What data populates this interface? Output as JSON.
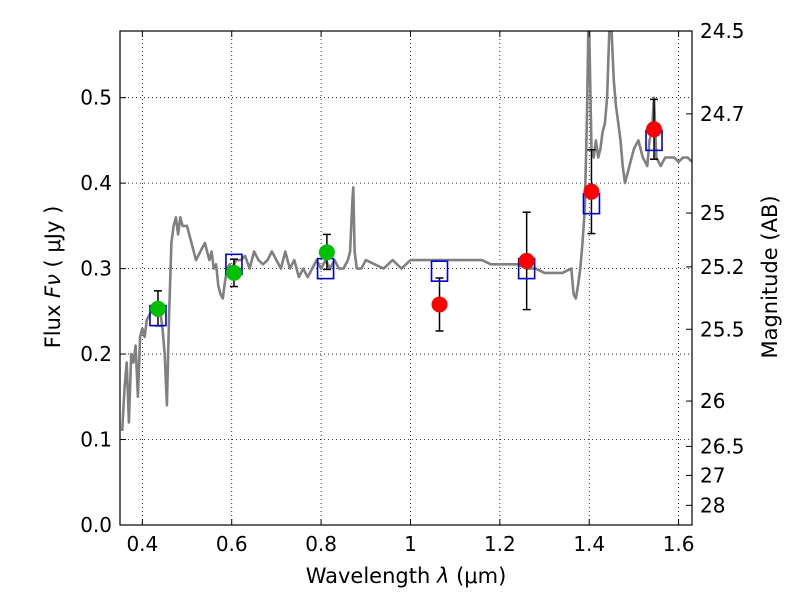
{
  "chart_data": {
    "type": "scatter",
    "xlabel_prefix": "Wavelength",
    "xlabel_symbol": "λ",
    "xlabel_unit": "(μm)",
    "ylabel_prefix": "Flux",
    "ylabel_symbol": "Fν",
    "ylabel_unit": "( μJy )",
    "y2label": "Magnitude (AB)",
    "xlim": [
      0.35,
      1.63
    ],
    "ylim": [
      0.0,
      0.578
    ],
    "grid": true,
    "x_ticks": [
      0.4,
      0.6,
      0.8,
      1.0,
      1.2,
      1.4,
      1.6
    ],
    "x_tick_labels": [
      "0.4",
      "0.6",
      "0.8",
      "1",
      "1.2",
      "1.4",
      "1.6"
    ],
    "y_ticks": [
      0.0,
      0.1,
      0.2,
      0.3,
      0.4,
      0.5
    ],
    "y_tick_labels": [
      "0.0",
      "0.1",
      "0.2",
      "0.3",
      "0.4",
      "0.5"
    ],
    "mag_ticks": [
      {
        "label": "24.5",
        "flux": 0.578
      },
      {
        "label": "24.7",
        "flux": 0.481
      },
      {
        "label": "25",
        "flux": 0.365
      },
      {
        "label": "25.2",
        "flux": 0.302
      },
      {
        "label": "25.5",
        "flux": 0.229
      },
      {
        "label": "26",
        "flux": 0.145
      },
      {
        "label": "26.5",
        "flux": 0.092
      },
      {
        "label": "27",
        "flux": 0.058
      },
      {
        "label": "28",
        "flux": 0.023
      }
    ],
    "series": [
      {
        "kind": "model-spectrum",
        "color": "#808080",
        "points": [
          [
            0.355,
            0.11
          ],
          [
            0.36,
            0.16
          ],
          [
            0.365,
            0.19
          ],
          [
            0.37,
            0.12
          ],
          [
            0.375,
            0.2
          ],
          [
            0.38,
            0.19
          ],
          [
            0.385,
            0.21
          ],
          [
            0.39,
            0.15
          ],
          [
            0.395,
            0.22
          ],
          [
            0.4,
            0.23
          ],
          [
            0.405,
            0.22
          ],
          [
            0.41,
            0.24
          ],
          [
            0.42,
            0.25
          ],
          [
            0.43,
            0.245
          ],
          [
            0.44,
            0.25
          ],
          [
            0.445,
            0.23
          ],
          [
            0.45,
            0.2
          ],
          [
            0.455,
            0.14
          ],
          [
            0.46,
            0.25
          ],
          [
            0.465,
            0.33
          ],
          [
            0.47,
            0.35
          ],
          [
            0.475,
            0.36
          ],
          [
            0.48,
            0.34
          ],
          [
            0.485,
            0.36
          ],
          [
            0.49,
            0.35
          ],
          [
            0.5,
            0.35
          ],
          [
            0.51,
            0.33
          ],
          [
            0.52,
            0.31
          ],
          [
            0.53,
            0.32
          ],
          [
            0.54,
            0.33
          ],
          [
            0.545,
            0.32
          ],
          [
            0.55,
            0.31
          ],
          [
            0.555,
            0.32
          ],
          [
            0.56,
            0.3
          ],
          [
            0.565,
            0.305
          ],
          [
            0.57,
            0.28
          ],
          [
            0.575,
            0.27
          ],
          [
            0.58,
            0.265
          ],
          [
            0.585,
            0.285
          ],
          [
            0.59,
            0.3
          ],
          [
            0.595,
            0.305
          ],
          [
            0.6,
            0.3
          ],
          [
            0.61,
            0.31
          ],
          [
            0.62,
            0.31
          ],
          [
            0.63,
            0.315
          ],
          [
            0.64,
            0.3
          ],
          [
            0.65,
            0.32
          ],
          [
            0.66,
            0.31
          ],
          [
            0.67,
            0.305
          ],
          [
            0.68,
            0.31
          ],
          [
            0.69,
            0.32
          ],
          [
            0.7,
            0.31
          ],
          [
            0.71,
            0.3
          ],
          [
            0.72,
            0.32
          ],
          [
            0.73,
            0.3
          ],
          [
            0.74,
            0.31
          ],
          [
            0.75,
            0.29
          ],
          [
            0.76,
            0.3
          ],
          [
            0.77,
            0.29
          ],
          [
            0.78,
            0.3
          ],
          [
            0.79,
            0.31
          ],
          [
            0.8,
            0.3
          ],
          [
            0.81,
            0.31
          ],
          [
            0.82,
            0.3
          ],
          [
            0.83,
            0.31
          ],
          [
            0.84,
            0.3
          ],
          [
            0.85,
            0.3
          ],
          [
            0.86,
            0.31
          ],
          [
            0.865,
            0.32
          ],
          [
            0.87,
            0.38
          ],
          [
            0.872,
            0.395
          ],
          [
            0.875,
            0.32
          ],
          [
            0.88,
            0.3
          ],
          [
            0.89,
            0.3
          ],
          [
            0.9,
            0.31
          ],
          [
            0.92,
            0.305
          ],
          [
            0.94,
            0.3
          ],
          [
            0.96,
            0.31
          ],
          [
            0.98,
            0.3
          ],
          [
            1.0,
            0.31
          ],
          [
            1.02,
            0.31
          ],
          [
            1.04,
            0.31
          ],
          [
            1.06,
            0.31
          ],
          [
            1.08,
            0.31
          ],
          [
            1.1,
            0.31
          ],
          [
            1.12,
            0.31
          ],
          [
            1.14,
            0.31
          ],
          [
            1.16,
            0.31
          ],
          [
            1.18,
            0.305
          ],
          [
            1.2,
            0.305
          ],
          [
            1.22,
            0.305
          ],
          [
            1.24,
            0.305
          ],
          [
            1.26,
            0.3
          ],
          [
            1.28,
            0.3
          ],
          [
            1.3,
            0.295
          ],
          [
            1.32,
            0.295
          ],
          [
            1.34,
            0.295
          ],
          [
            1.36,
            0.3
          ],
          [
            1.365,
            0.27
          ],
          [
            1.37,
            0.265
          ],
          [
            1.375,
            0.28
          ],
          [
            1.38,
            0.3
          ],
          [
            1.385,
            0.33
          ],
          [
            1.39,
            0.37
          ],
          [
            1.395,
            0.48
          ],
          [
            1.398,
            0.578
          ],
          [
            1.4,
            0.578
          ],
          [
            1.405,
            0.44
          ],
          [
            1.41,
            0.43
          ],
          [
            1.415,
            0.45
          ],
          [
            1.42,
            0.43
          ],
          [
            1.425,
            0.44
          ],
          [
            1.43,
            0.46
          ],
          [
            1.435,
            0.47
          ],
          [
            1.44,
            0.5
          ],
          [
            1.445,
            0.578
          ],
          [
            1.45,
            0.578
          ],
          [
            1.455,
            0.52
          ],
          [
            1.46,
            0.49
          ],
          [
            1.465,
            0.47
          ],
          [
            1.47,
            0.45
          ],
          [
            1.475,
            0.42
          ],
          [
            1.48,
            0.4
          ],
          [
            1.485,
            0.41
          ],
          [
            1.49,
            0.42
          ],
          [
            1.5,
            0.44
          ],
          [
            1.51,
            0.45
          ],
          [
            1.52,
            0.43
          ],
          [
            1.53,
            0.42
          ],
          [
            1.535,
            0.45
          ],
          [
            1.54,
            0.46
          ],
          [
            1.545,
            0.5
          ],
          [
            1.55,
            0.43
          ],
          [
            1.56,
            0.42
          ],
          [
            1.57,
            0.43
          ],
          [
            1.58,
            0.43
          ],
          [
            1.59,
            0.43
          ],
          [
            1.6,
            0.425
          ],
          [
            1.61,
            0.43
          ],
          [
            1.62,
            0.43
          ],
          [
            1.63,
            0.425
          ]
        ]
      },
      {
        "kind": "model-photometry",
        "marker": "open-square",
        "color": "#0000cc",
        "points": [
          [
            0.435,
            0.245
          ],
          [
            0.605,
            0.305
          ],
          [
            0.81,
            0.3
          ],
          [
            1.065,
            0.297
          ],
          [
            1.26,
            0.3
          ],
          [
            1.405,
            0.376
          ],
          [
            1.545,
            0.45
          ]
        ]
      },
      {
        "kind": "observed-green",
        "marker": "filled-circle",
        "color": "#00c000",
        "points": [
          {
            "x": 0.435,
            "y": 0.253,
            "lo": 0.233,
            "hi": 0.274
          },
          {
            "x": 0.605,
            "y": 0.295,
            "lo": 0.279,
            "hi": 0.311
          },
          {
            "x": 0.813,
            "y": 0.319,
            "lo": 0.299,
            "hi": 0.34
          }
        ]
      },
      {
        "kind": "observed-red",
        "marker": "filled-circle",
        "color": "#ff0000",
        "points": [
          {
            "x": 1.065,
            "y": 0.258,
            "lo": 0.227,
            "hi": 0.289
          },
          {
            "x": 1.26,
            "y": 0.309,
            "lo": 0.252,
            "hi": 0.366
          },
          {
            "x": 1.405,
            "y": 0.39,
            "lo": 0.341,
            "hi": 0.439
          },
          {
            "x": 1.545,
            "y": 0.463,
            "lo": 0.428,
            "hi": 0.498
          }
        ]
      }
    ]
  }
}
